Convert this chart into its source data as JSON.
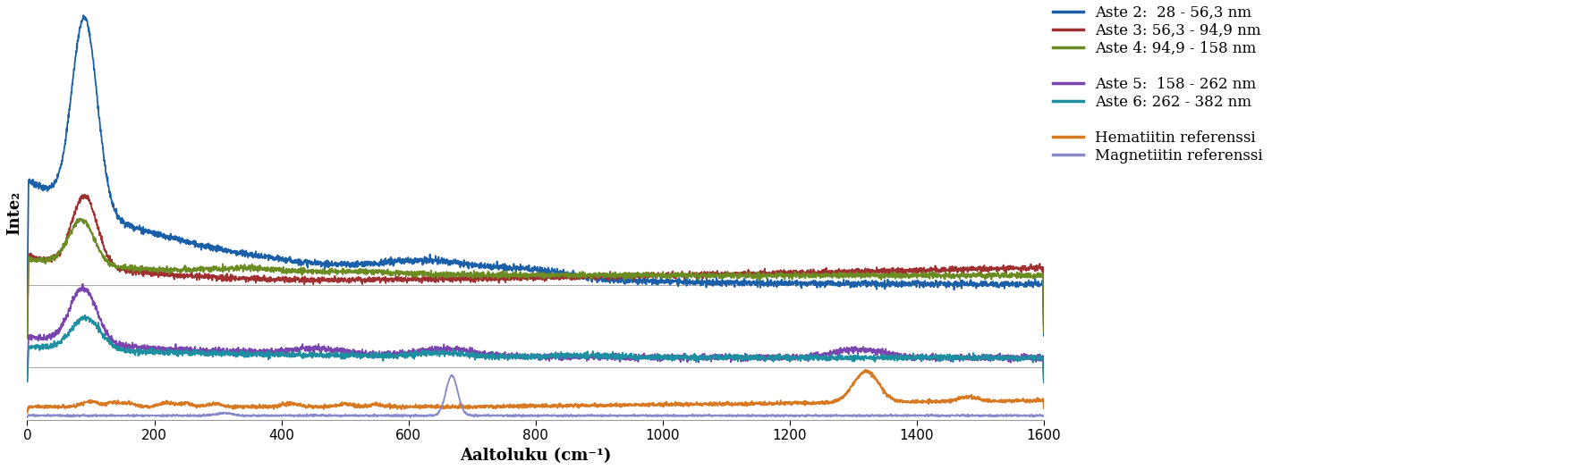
{
  "xlabel": "Aaltoluku (cm⁻¹)",
  "ylabel": "Inte₂",
  "xlim": [
    0,
    1600
  ],
  "xticks": [
    0,
    200,
    400,
    600,
    800,
    1000,
    1200,
    1400,
    1600
  ],
  "legend_entries": [
    "Aste 2:  28 - 56,3 nm",
    "Aste 3: 56,3 - 94,9 nm",
    "Aste 4: 94,9 - 158 nm",
    "",
    "Aste 5:  158 - 262 nm",
    "Aste 6: 262 - 382 nm",
    "",
    "Hematiitin referenssi",
    "Magnetiitin referenssi"
  ],
  "colors": {
    "aste2": "#1B5FA8",
    "aste3": "#A03030",
    "aste4": "#6B8C23",
    "aste5": "#7B45B0",
    "aste6": "#1E8FA0",
    "hematite": "#D87820",
    "magnetite": "#8888CC"
  },
  "sep_line_color": "#AAAAAA",
  "background_color": "#ffffff",
  "font_family": "DejaVu Serif"
}
